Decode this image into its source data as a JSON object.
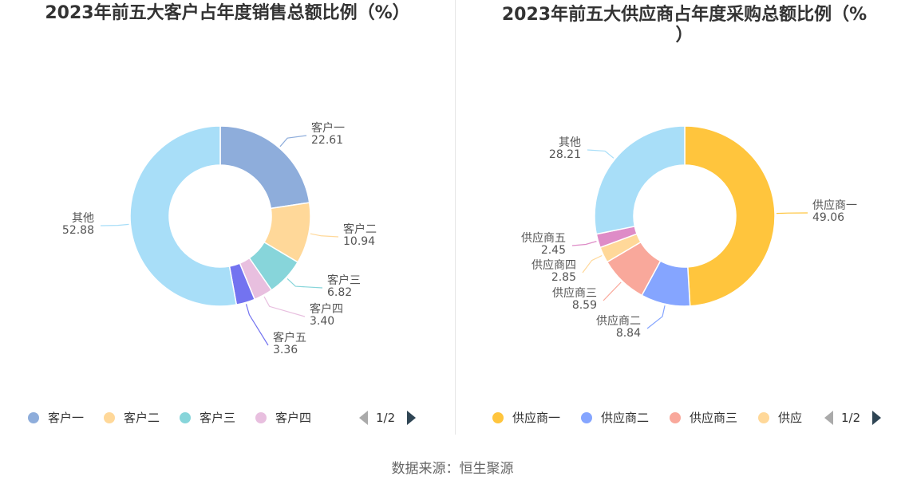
{
  "source_label": "数据来源：恒生聚源",
  "chart_data": [
    {
      "type": "pie",
      "title": "2023年前五大客户占年度销售总额比例（%）",
      "categories": [
        "客户一",
        "客户二",
        "客户三",
        "客户四",
        "客户五",
        "其他"
      ],
      "values": [
        22.61,
        10.94,
        6.82,
        3.4,
        3.36,
        52.88
      ],
      "value_labels": [
        "22.61",
        "10.94",
        "6.82",
        "3.40",
        "3.36",
        "52.88"
      ],
      "colors": [
        "#8EADDB",
        "#FFD899",
        "#87D5DA",
        "#E8BFDF",
        "#7373F0",
        "#A8DEF8"
      ],
      "legend": {
        "items": [
          "客户一",
          "客户二",
          "客户三",
          "客户四"
        ],
        "colors": [
          "#8EADDB",
          "#FFD899",
          "#87D5DA",
          "#E8BFDF",
          "#7373F0"
        ],
        "page": "1/2",
        "prev_icon": "◀",
        "next_icon": "▶"
      }
    },
    {
      "type": "pie",
      "title_line1": "2023年前五大供应商占年度采购总额比例（%",
      "title_line2": "）",
      "categories": [
        "供应商一",
        "供应商二",
        "供应商三",
        "供应商四",
        "供应商五",
        "其他"
      ],
      "values": [
        49.06,
        8.84,
        8.59,
        2.85,
        2.45,
        28.21
      ],
      "value_labels": [
        "49.06",
        "8.84",
        "8.59",
        "2.85",
        "2.45",
        "28.21"
      ],
      "colors": [
        "#FFC53D",
        "#85A5FF",
        "#F9A89B",
        "#FFD899",
        "#DE8CC7",
        "#A8DEF8"
      ],
      "legend": {
        "items": [
          "供应商一",
          "供应商二",
          "供应商三",
          "供应"
        ],
        "colors": [
          "#FFC53D",
          "#85A5FF",
          "#F9A89B",
          "#FFD899"
        ],
        "page": "1/2",
        "prev_icon": "◀",
        "next_icon": "▶"
      }
    }
  ]
}
